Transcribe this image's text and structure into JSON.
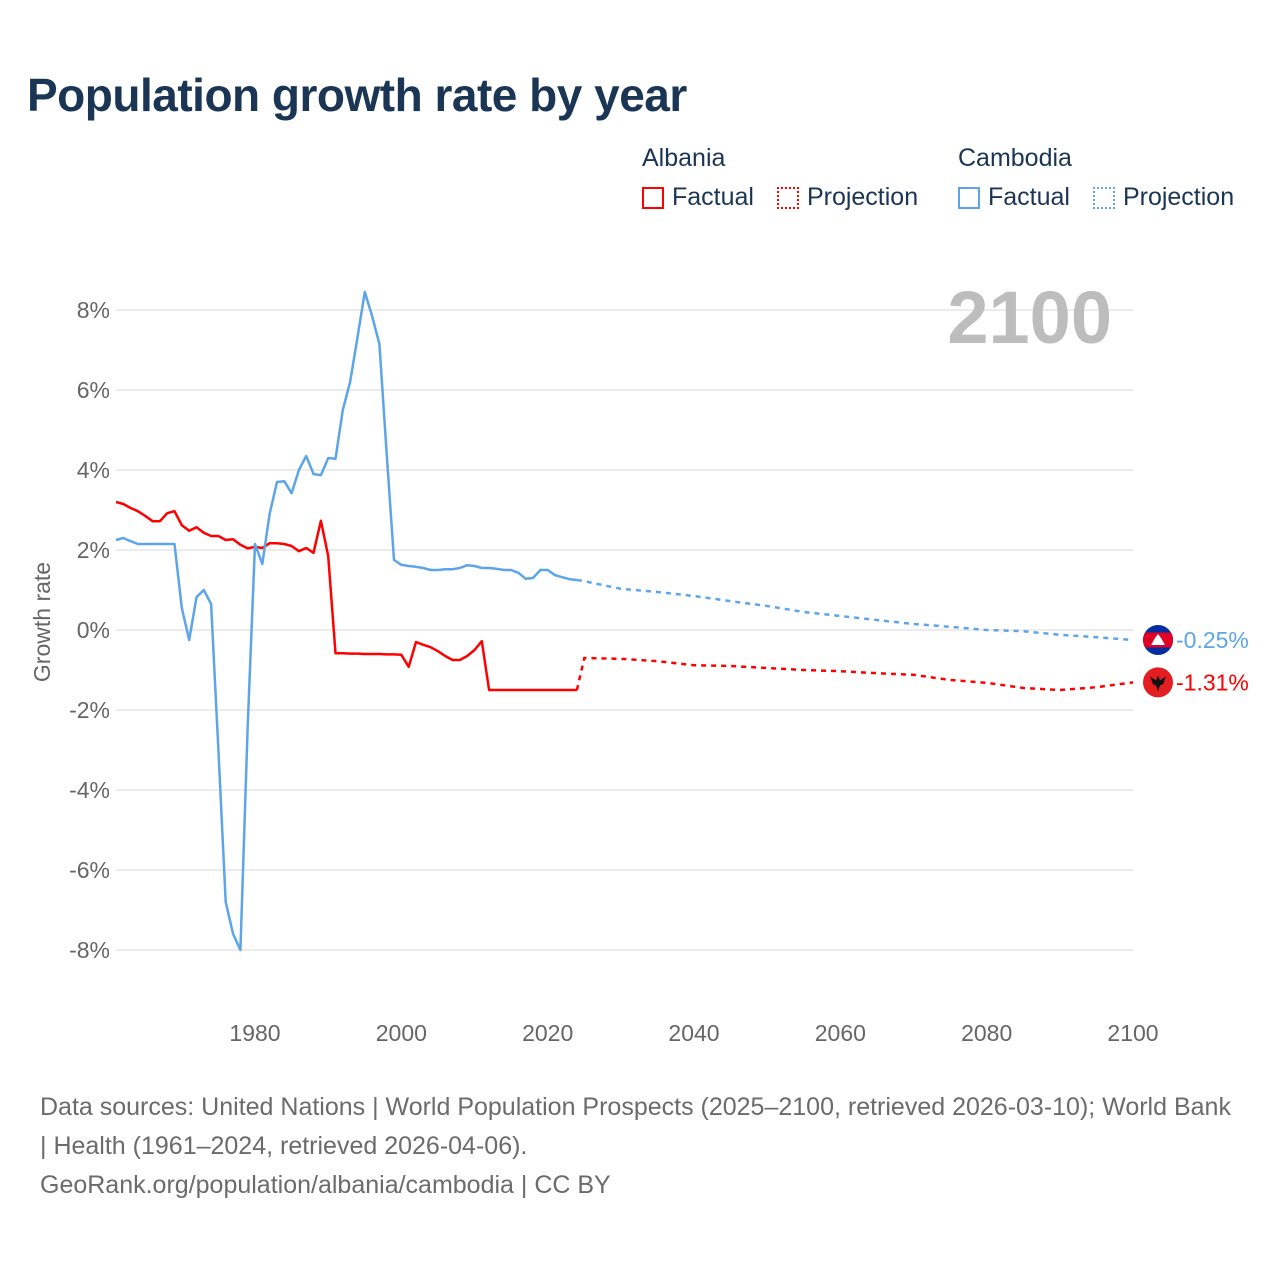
{
  "title": "Population growth rate by year",
  "legend": [
    {
      "group": "Albania",
      "color": "#ff0000",
      "factual": "Factual",
      "projection": "Projection"
    },
    {
      "group": "Cambodia",
      "color": "#5da5e8",
      "factual": "Factual",
      "projection": "Projection"
    }
  ],
  "footer": {
    "sources": "Data sources: United Nations | World Population Prospects (2025–2100, retrieved 2026-03-10); World Bank | Health (1961–2024, retrieved 2026-04-06).",
    "credit": "GeoRank.org/population/albania/cambodia | CC BY"
  },
  "chart_data": {
    "type": "line",
    "title": "Population growth rate by year",
    "xlabel": "",
    "ylabel": "Growth rate",
    "year_label": "2100",
    "xlim": [
      1961,
      2100
    ],
    "ylim": [
      -9.5,
      9
    ],
    "x_ticks": [
      1980,
      2000,
      2020,
      2040,
      2060,
      2080,
      2100
    ],
    "y_ticks": [
      8,
      6,
      4,
      2,
      0,
      -2,
      -4,
      -6,
      -8
    ],
    "y_tick_labels": [
      "8%",
      "6%",
      "4%",
      "2%",
      "0%",
      "-2%",
      "-4%",
      "-6%",
      "-8%"
    ],
    "x_tick_labels": [
      "1980",
      "2000",
      "2020",
      "2040",
      "2060",
      "2080",
      "2100"
    ],
    "grid": true,
    "legend_position": "top-right",
    "series": [
      {
        "name": "Albania",
        "color": "#ff0000",
        "end_label": "-1.31%",
        "factual": {
          "x": [
            1961,
            1962,
            1963,
            1964,
            1965,
            1966,
            1967,
            1968,
            1969,
            1970,
            1971,
            1972,
            1973,
            1974,
            1975,
            1976,
            1977,
            1978,
            1979,
            1980,
            1981,
            1982,
            1983,
            1984,
            1985,
            1986,
            1987,
            1988,
            1989,
            1990,
            1991,
            1992,
            1993,
            1994,
            1995,
            1996,
            1997,
            1998,
            1999,
            2000,
            2001,
            2002,
            2003,
            2004,
            2005,
            2006,
            2007,
            2008,
            2009,
            2010,
            2011,
            2012,
            2013,
            2014,
            2015,
            2016,
            2017,
            2018,
            2019,
            2020,
            2021,
            2022,
            2023,
            2024
          ],
          "y": [
            3.2,
            3.15,
            3.05,
            2.97,
            2.85,
            2.72,
            2.72,
            2.92,
            2.97,
            2.62,
            2.48,
            2.57,
            2.43,
            2.35,
            2.35,
            2.25,
            2.27,
            2.13,
            2.04,
            2.08,
            2.05,
            2.17,
            2.17,
            2.15,
            2.1,
            1.97,
            2.05,
            1.93,
            2.73,
            1.85,
            -0.58,
            -0.58,
            -0.59,
            -0.59,
            -0.6,
            -0.6,
            -0.6,
            -0.61,
            -0.61,
            -0.62,
            -0.92,
            -0.3,
            -0.37,
            -0.43,
            -0.53,
            -0.65,
            -0.75,
            -0.75,
            -0.65,
            -0.5,
            -0.28,
            -1.5,
            -1.5,
            -1.5,
            -1.5,
            -1.5,
            -1.5,
            -1.5,
            -1.5,
            -1.5,
            -1.5,
            -1.5,
            -1.5,
            -1.5
          ]
        },
        "projection": {
          "x": [
            2024,
            2025,
            2030,
            2035,
            2040,
            2045,
            2050,
            2055,
            2060,
            2065,
            2070,
            2075,
            2080,
            2085,
            2090,
            2095,
            2100
          ],
          "y": [
            -1.5,
            -0.7,
            -0.72,
            -0.78,
            -0.88,
            -0.9,
            -0.95,
            -1.0,
            -1.03,
            -1.08,
            -1.12,
            -1.25,
            -1.32,
            -1.45,
            -1.5,
            -1.43,
            -1.31
          ]
        }
      },
      {
        "name": "Cambodia",
        "color": "#5da5e8",
        "end_label": "-0.25%",
        "factual": {
          "x": [
            1961,
            1962,
            1963,
            1964,
            1965,
            1966,
            1967,
            1968,
            1969,
            1970,
            1971,
            1972,
            1973,
            1974,
            1975,
            1976,
            1977,
            1978,
            1979,
            1980,
            1981,
            1982,
            1983,
            1984,
            1985,
            1986,
            1987,
            1988,
            1989,
            1990,
            1991,
            1992,
            1993,
            1994,
            1995,
            1996,
            1997,
            1998,
            1999,
            2000,
            2001,
            2002,
            2003,
            2004,
            2005,
            2006,
            2007,
            2008,
            2009,
            2010,
            2011,
            2012,
            2013,
            2014,
            2015,
            2016,
            2017,
            2018,
            2019,
            2020,
            2021,
            2022,
            2023,
            2024
          ],
          "y": [
            2.25,
            2.3,
            2.22,
            2.15,
            2.15,
            2.15,
            2.15,
            2.15,
            2.15,
            0.55,
            -0.25,
            0.82,
            1.0,
            0.65,
            -3.0,
            -6.8,
            -7.6,
            -8.0,
            -2.4,
            2.15,
            1.65,
            2.9,
            3.7,
            3.72,
            3.42,
            4.0,
            4.35,
            3.9,
            3.87,
            4.3,
            4.28,
            5.5,
            6.2,
            7.3,
            8.45,
            7.85,
            7.15,
            4.4,
            1.75,
            1.63,
            1.6,
            1.58,
            1.55,
            1.5,
            1.5,
            1.52,
            1.52,
            1.55,
            1.62,
            1.6,
            1.55,
            1.55,
            1.53,
            1.5,
            1.5,
            1.43,
            1.28,
            1.3,
            1.5,
            1.5,
            1.37,
            1.32,
            1.27,
            1.25
          ]
        },
        "projection": {
          "x": [
            2024,
            2025,
            2030,
            2035,
            2040,
            2045,
            2050,
            2055,
            2060,
            2065,
            2070,
            2075,
            2080,
            2085,
            2090,
            2095,
            2100
          ],
          "y": [
            1.25,
            1.22,
            1.03,
            0.95,
            0.85,
            0.72,
            0.6,
            0.45,
            0.35,
            0.25,
            0.15,
            0.08,
            0.0,
            -0.03,
            -0.12,
            -0.18,
            -0.25
          ]
        }
      }
    ]
  }
}
